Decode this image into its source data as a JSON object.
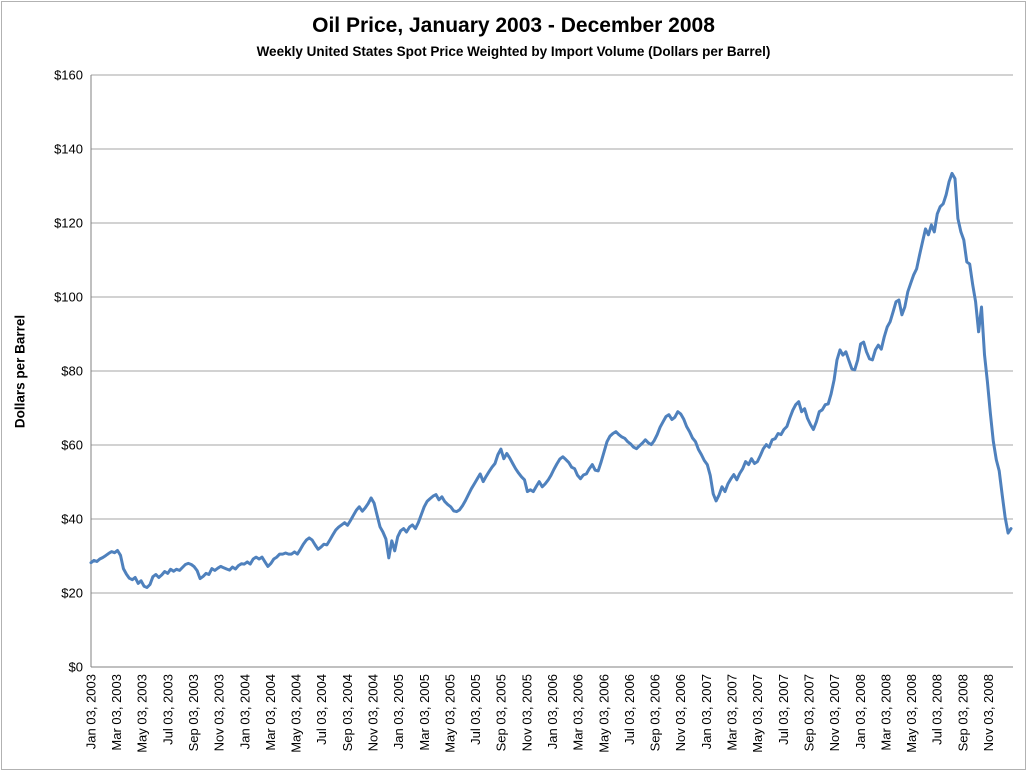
{
  "window": {
    "background": "#ffffff",
    "frame_border_color": "#b2b2b2"
  },
  "chart_data": {
    "type": "line",
    "title": "Oil Price, January 2003 - December 2008",
    "subtitle": "Weekly United States Spot Price Weighted by Import Volume (Dollars per Barrel)",
    "ylabel": "Dollars per Barrel",
    "xlabel": "",
    "ylim": [
      0,
      160
    ],
    "ytick_step": 20,
    "ytick_labels": [
      "$0",
      "$20",
      "$40",
      "$60",
      "$80",
      "$100",
      "$120",
      "$140",
      "$160"
    ],
    "x_tick_labels": [
      "Jan 03, 2003",
      "Mar 03, 2003",
      "May 03, 2003",
      "Jul 03, 2003",
      "Sep 03, 2003",
      "Nov 03, 2003",
      "Jan 03, 2004",
      "Mar 03, 2004",
      "May 03, 2004",
      "Jul 03, 2004",
      "Sep 03, 2004",
      "Nov 03, 2004",
      "Jan 03, 2005",
      "Mar 03, 2005",
      "May 03, 2005",
      "Jul 03, 2005",
      "Sep 03, 2005",
      "Nov 03, 2005",
      "Jan 03, 2006",
      "Mar 03, 2006",
      "May 03, 2006",
      "Jul 03, 2006",
      "Sep 03, 2006",
      "Nov 03, 2006",
      "Jan 03, 2007",
      "Mar 03, 2007",
      "May 03, 2007",
      "Jul 03, 2007",
      "Sep 03, 2007",
      "Nov 03, 2007",
      "Jan 03, 2008",
      "Mar 03, 2008",
      "May 03, 2008",
      "Jul 03, 2008",
      "Sep 03, 2008",
      "Nov 03, 2008"
    ],
    "weeks_per_x_tick": 8.697,
    "grid": true,
    "legend": "none",
    "line_color": "#4F81BD",
    "line_width": 3,
    "gridline_color": "#a6a6a6",
    "axis_line_color": "#808080",
    "series": [
      {
        "label": "Weekly United States Spot Price Weighted by Import Volume",
        "unit": "dollars per barrel",
        "frequency": "weekly",
        "first_point": "Jan 03, 2003",
        "last_point": "Dec 2008",
        "values": [
          28.2,
          28.8,
          28.5,
          29.2,
          29.6,
          30.1,
          30.7,
          31.2,
          30.9,
          31.5,
          30.2,
          26.6,
          25.1,
          24.0,
          23.6,
          24.2,
          22.6,
          23.3,
          21.8,
          21.5,
          22.3,
          24.4,
          25.0,
          24.2,
          24.9,
          25.8,
          25.3,
          26.4,
          25.9,
          26.4,
          26.1,
          26.9,
          27.7,
          28.0,
          27.7,
          27.1,
          26.0,
          23.9,
          24.5,
          25.3,
          25.0,
          26.6,
          26.1,
          26.7,
          27.2,
          26.8,
          26.5,
          26.2,
          27.0,
          26.5,
          27.4,
          27.9,
          27.8,
          28.4,
          27.8,
          29.2,
          29.7,
          29.2,
          29.7,
          28.4,
          27.2,
          28.0,
          29.2,
          29.7,
          30.5,
          30.5,
          30.8,
          30.5,
          30.5,
          31.1,
          30.5,
          31.8,
          33.2,
          34.3,
          34.9,
          34.3,
          33.0,
          31.8,
          32.4,
          33.2,
          33.0,
          34.3,
          35.7,
          37.0,
          37.8,
          38.4,
          39.0,
          38.3,
          39.6,
          41.0,
          42.4,
          43.3,
          42.1,
          43.0,
          44.2,
          45.7,
          44.3,
          41.1,
          37.9,
          36.5,
          34.6,
          29.5,
          34.1,
          31.4,
          35.2,
          36.8,
          37.4,
          36.5,
          37.8,
          38.4,
          37.4,
          39.0,
          41.2,
          43.3,
          44.8,
          45.5,
          46.2,
          46.6,
          45.2,
          46.0,
          44.7,
          43.9,
          43.3,
          42.2,
          42.0,
          42.5,
          43.6,
          45.0,
          46.6,
          48.2,
          49.5,
          50.9,
          52.2,
          50.1,
          51.5,
          52.8,
          54.0,
          55.0,
          57.4,
          58.9,
          56.3,
          57.7,
          56.5,
          55.0,
          53.6,
          52.4,
          51.4,
          50.6,
          47.4,
          47.9,
          47.4,
          48.8,
          50.1,
          48.7,
          49.5,
          50.5,
          51.8,
          53.4,
          54.9,
          56.2,
          56.8,
          56.1,
          55.3,
          54.0,
          53.6,
          51.8,
          50.9,
          51.9,
          52.2,
          53.6,
          54.7,
          53.2,
          53.0,
          55.4,
          58.2,
          60.9,
          62.4,
          63.1,
          63.6,
          62.8,
          62.2,
          61.8,
          60.9,
          60.3,
          59.4,
          59.0,
          59.8,
          60.5,
          61.4,
          60.6,
          60.1,
          61.2,
          62.8,
          64.8,
          66.3,
          67.7,
          68.2,
          66.9,
          67.5,
          69.0,
          68.4,
          67.0,
          65.0,
          63.6,
          61.9,
          60.9,
          58.8,
          57.4,
          55.8,
          54.7,
          51.8,
          46.8,
          44.9,
          46.5,
          48.7,
          47.4,
          49.5,
          50.9,
          52.0,
          50.6,
          52.3,
          53.6,
          55.5,
          54.7,
          56.3,
          55.0,
          55.5,
          57.2,
          59.0,
          60.1,
          59.4,
          61.4,
          61.7,
          63.1,
          62.8,
          64.2,
          65.0,
          67.3,
          69.4,
          70.9,
          71.7,
          69.0,
          69.8,
          67.2,
          65.5,
          64.2,
          66.3,
          69.0,
          69.5,
          70.9,
          71.1,
          73.8,
          77.6,
          83.0,
          85.7,
          84.3,
          85.2,
          82.9,
          80.6,
          80.3,
          83.0,
          87.3,
          87.8,
          85.2,
          83.3,
          83.0,
          85.7,
          87.0,
          85.9,
          89.2,
          91.9,
          93.3,
          96.0,
          98.7,
          99.2,
          95.2,
          97.3,
          101.4,
          103.7,
          106.0,
          107.6,
          111.4,
          114.9,
          118.4,
          116.8,
          119.5,
          117.6,
          122.5,
          124.4,
          125.2,
          127.6,
          131.2,
          133.4,
          132.0,
          121.2,
          117.6,
          115.4,
          109.5,
          108.9,
          103.3,
          98.7,
          90.6,
          97.3,
          84.4,
          77.1,
          68.5,
          61.0,
          56.0,
          53.0,
          46.5,
          40.5,
          36.2,
          37.4
        ]
      }
    ]
  }
}
